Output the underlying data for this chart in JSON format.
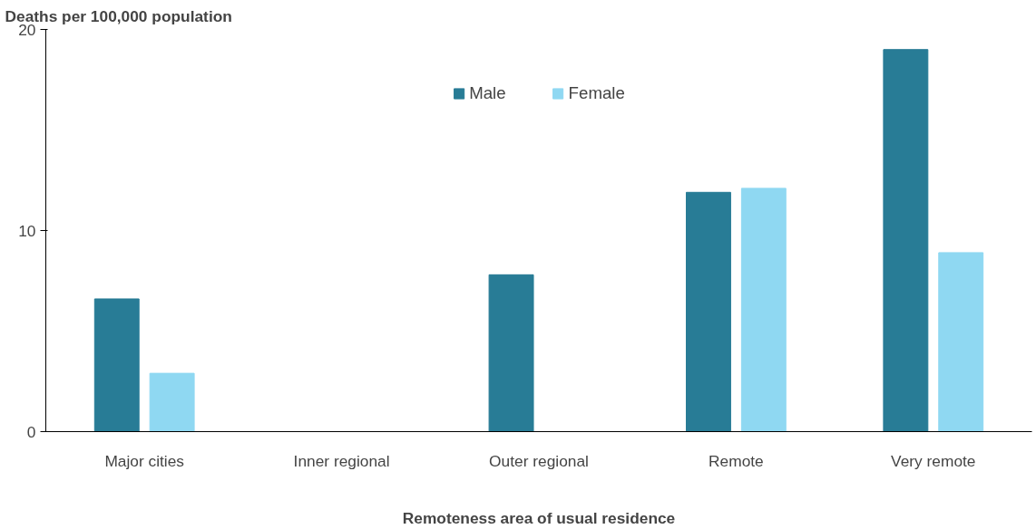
{
  "chart_data": {
    "type": "bar",
    "ylabel": "Deaths per 100,000 population",
    "xlabel": "Remoteness area of usual residence",
    "categories": [
      "Major cities",
      "Inner regional",
      "Outer regional",
      "Remote",
      "Very remote"
    ],
    "series": [
      {
        "name": "Male",
        "color": "#287c96",
        "values": [
          6.6,
          null,
          7.8,
          11.9,
          19.0
        ]
      },
      {
        "name": "Female",
        "color": "#8fd8f2",
        "values": [
          2.9,
          null,
          null,
          12.1,
          8.9
        ]
      }
    ],
    "ylim": [
      0,
      20
    ],
    "yticks": [
      0,
      10,
      20
    ],
    "grid": false,
    "legend": "top"
  }
}
